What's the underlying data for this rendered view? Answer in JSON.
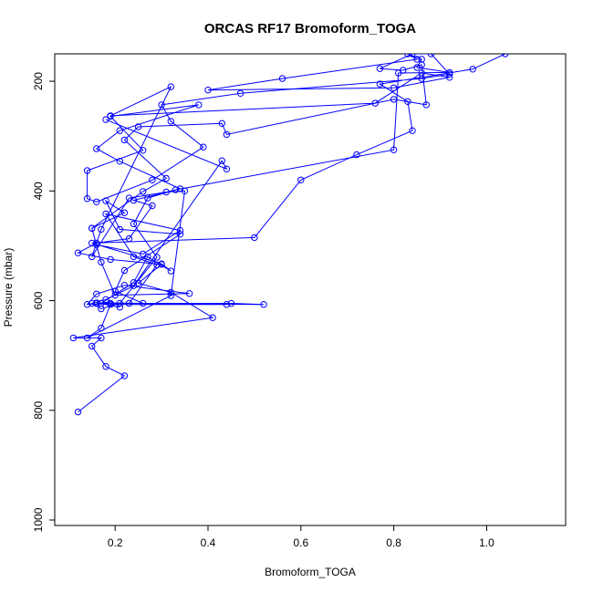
{
  "chart_data": {
    "type": "line",
    "title": "ORCAS RF17 Bromoform_TOGA",
    "xlabel": "Bromoform_TOGA",
    "ylabel": "Pressure (mbar)",
    "xlim": [
      0.07,
      1.17
    ],
    "ylim": [
      1010,
      150
    ],
    "y_reversed": true,
    "x_ticks": [
      0.2,
      0.4,
      0.6,
      0.8,
      1.0
    ],
    "x_tick_labels": [
      "0.2",
      "0.4",
      "0.6",
      "0.8",
      "1.0"
    ],
    "y_ticks": [
      200,
      400,
      600,
      800,
      1000
    ],
    "y_tick_labels": [
      "200",
      "400",
      "600",
      "800",
      "1000"
    ],
    "grid": false,
    "legend": "none",
    "series": [
      {
        "color": "#0000ff",
        "marker": "open-circle",
        "points": [
          [
            0.12,
            803
          ],
          [
            0.22,
            737
          ],
          [
            0.18,
            720
          ],
          [
            0.15,
            683
          ],
          [
            0.17,
            668
          ],
          [
            0.11,
            668
          ],
          [
            0.41,
            631
          ],
          [
            0.32,
            585
          ],
          [
            0.25,
            568
          ],
          [
            0.3,
            534
          ],
          [
            0.19,
            525
          ],
          [
            0.12,
            513
          ],
          [
            0.16,
            495
          ],
          [
            0.23,
            487
          ],
          [
            0.28,
            427
          ],
          [
            0.24,
            417
          ],
          [
            0.34,
            396
          ],
          [
            0.21,
            346
          ],
          [
            0.16,
            323
          ],
          [
            0.21,
            290
          ],
          [
            0.38,
            243
          ],
          [
            0.19,
            264
          ],
          [
            0.26,
            326
          ],
          [
            0.14,
            363
          ],
          [
            0.14,
            414
          ],
          [
            0.16,
            420
          ],
          [
            0.28,
            380
          ],
          [
            0.39,
            320
          ],
          [
            0.32,
            273
          ],
          [
            0.3,
            243
          ],
          [
            0.47,
            222
          ],
          [
            0.86,
            195
          ],
          [
            0.92,
            187
          ],
          [
            0.88,
            150
          ],
          [
            0.84,
            150
          ],
          [
            0.77,
            177
          ],
          [
            0.82,
            180
          ],
          [
            0.86,
            170
          ],
          [
            0.87,
            243
          ],
          [
            0.8,
            233
          ],
          [
            0.44,
            297
          ],
          [
            0.43,
            277
          ],
          [
            0.25,
            283
          ],
          [
            0.22,
            307
          ],
          [
            0.31,
            377
          ],
          [
            0.26,
            401
          ],
          [
            0.15,
            468
          ],
          [
            0.17,
            530
          ],
          [
            0.2,
            590
          ],
          [
            0.36,
            587
          ],
          [
            0.22,
            572
          ],
          [
            0.16,
            588
          ],
          [
            0.14,
            607
          ],
          [
            0.23,
            605
          ],
          [
            0.29,
            535
          ],
          [
            0.24,
            520
          ],
          [
            0.18,
            442
          ],
          [
            0.34,
            472
          ],
          [
            0.26,
            515
          ],
          [
            0.16,
            498
          ],
          [
            0.15,
            468
          ],
          [
            0.22,
            440
          ],
          [
            0.18,
            418
          ],
          [
            0.21,
            470
          ],
          [
            0.34,
            479
          ],
          [
            0.22,
            545
          ],
          [
            0.2,
            583
          ],
          [
            0.26,
            605
          ],
          [
            0.19,
            605
          ],
          [
            0.16,
            605
          ],
          [
            0.45,
            605
          ],
          [
            0.52,
            607
          ],
          [
            0.17,
            605
          ],
          [
            0.24,
            567
          ],
          [
            0.27,
            520
          ],
          [
            0.32,
            546
          ],
          [
            0.3,
            533
          ],
          [
            0.15,
            495
          ],
          [
            0.5,
            485
          ],
          [
            0.6,
            380
          ],
          [
            0.72,
            334
          ],
          [
            0.84,
            290
          ],
          [
            0.83,
            237
          ],
          [
            0.77,
            205
          ],
          [
            0.97,
            178
          ],
          [
            1.04,
            150
          ]
        ]
      },
      {
        "color": "#0000ff",
        "marker": "open-circle",
        "points": [
          [
            0.21,
            612
          ],
          [
            0.16,
            604
          ],
          [
            0.44,
            607
          ],
          [
            0.19,
            607
          ],
          [
            0.17,
            650
          ],
          [
            0.14,
            668
          ],
          [
            0.32,
            591
          ],
          [
            0.35,
            400
          ],
          [
            0.31,
            402
          ],
          [
            0.23,
            413
          ],
          [
            0.15,
            520
          ],
          [
            0.17,
            470
          ],
          [
            0.32,
            210
          ],
          [
            0.19,
            263
          ],
          [
            0.76,
            240
          ],
          [
            0.86,
            185
          ],
          [
            0.92,
            193
          ],
          [
            0.8,
            212
          ],
          [
            0.4,
            216
          ],
          [
            0.56,
            195
          ],
          [
            0.85,
            160
          ],
          [
            0.83,
            150
          ],
          [
            0.86,
            160
          ],
          [
            0.85,
            175
          ],
          [
            0.92,
            184
          ],
          [
            0.81,
            185
          ],
          [
            0.8,
            325
          ],
          [
            0.33,
            398
          ],
          [
            0.27,
            413
          ],
          [
            0.24,
            460
          ],
          [
            0.29,
            521
          ],
          [
            0.21,
            605
          ],
          [
            0.17,
            615
          ],
          [
            0.15,
            605
          ],
          [
            0.18,
            598
          ],
          [
            0.24,
            573
          ],
          [
            0.43,
            345
          ],
          [
            0.44,
            360
          ],
          [
            0.18,
            270
          ]
        ]
      }
    ]
  }
}
